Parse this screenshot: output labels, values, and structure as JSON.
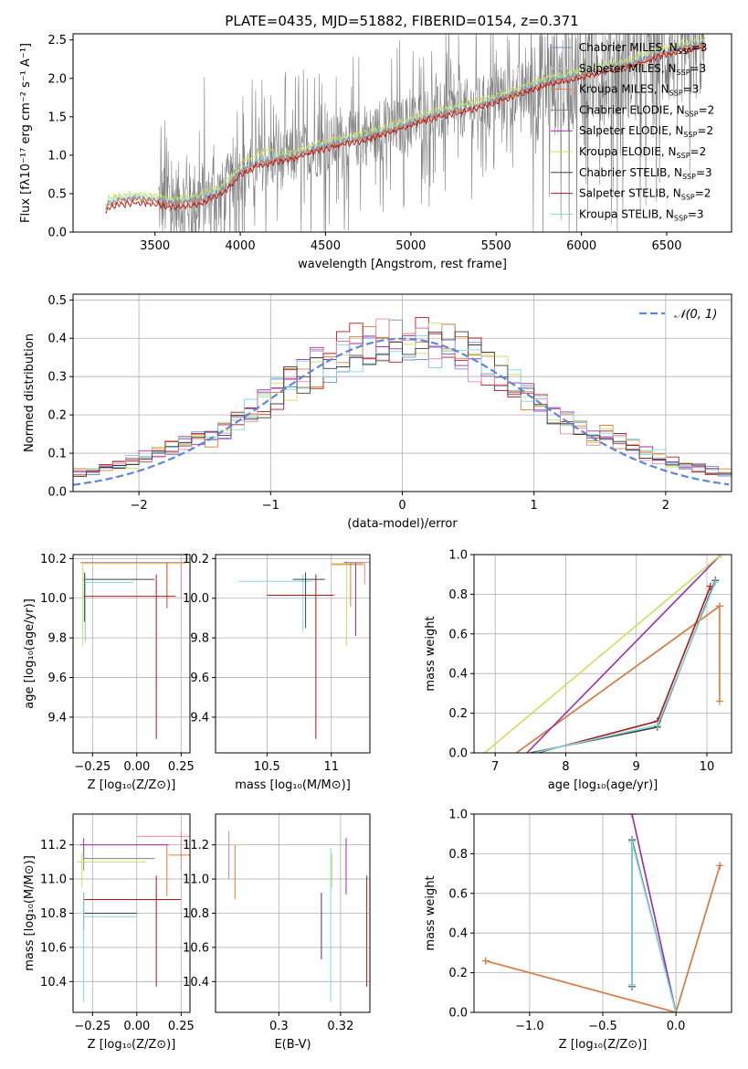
{
  "figure": {
    "title": "PLATE=0435, MJD=51882, FIBERID=0154, z=0.371"
  },
  "colors": {
    "chabrier_miles": "#6a8fd8",
    "salpeter_miles": "#c0c0c0",
    "kroupa_miles": "#e07b39",
    "chabrier_elodie": "#808080",
    "salpeter_elodie": "#9a2fb0",
    "kroupa_elodie": "#c8e060",
    "chabrier_stelib": "#404040",
    "salpeter_stelib": "#b01818",
    "kroupa_stelib": "#80d8e0",
    "pink": "#e88aa8",
    "grid": "#b0b0b0",
    "data": "#808080"
  },
  "chart_data": [
    {
      "id": "spectrum",
      "type": "line",
      "title": "PLATE=0435, MJD=51882, FIBERID=0154, z=0.371",
      "xlabel": "wavelength [Angstrom, rest frame]",
      "ylabel": "Flux [fλ10⁻¹⁷ erg cm⁻² s⁻¹ A⁻¹]",
      "xlim": [
        3020,
        6880
      ],
      "ylim": [
        0,
        2.58
      ],
      "xticks": [
        3500,
        4000,
        4500,
        5000,
        5500,
        6000,
        6500
      ],
      "yticks": [
        0.0,
        0.5,
        1.0,
        1.5,
        2.0,
        2.5
      ],
      "grid": false,
      "legend_position": "top-right",
      "legend": [
        {
          "label": "Chabrier MILES, N",
          "sub": "SSP",
          "suffix": "=3"
        },
        {
          "label": "Salpeter MILES, N",
          "sub": "SSP",
          "suffix": "=3"
        },
        {
          "label": "Kroupa MILES, N",
          "sub": "SSP",
          "suffix": "=3"
        },
        {
          "label": "Chabrier ELODIE, N",
          "sub": "SSP",
          "suffix": "=2"
        },
        {
          "label": "Salpeter ELODIE, N",
          "sub": "SSP",
          "suffix": "=2"
        },
        {
          "label": "Kroupa ELODIE, N",
          "sub": "SSP",
          "suffix": "=2"
        },
        {
          "label": "Chabrier STELIB, N",
          "sub": "SSP",
          "suffix": "=3"
        },
        {
          "label": "Salpeter STELIB, N",
          "sub": "SSP",
          "suffix": "=2"
        },
        {
          "label": "Kroupa STELIB, N",
          "sub": "SSP",
          "suffix": "=3"
        }
      ],
      "model_continuum": [
        [
          3210,
          0.3
        ],
        [
          3230,
          0.38
        ],
        [
          3300,
          0.42
        ],
        [
          3400,
          0.44
        ],
        [
          3500,
          0.42
        ],
        [
          3600,
          0.38
        ],
        [
          3700,
          0.4
        ],
        [
          3800,
          0.45
        ],
        [
          3900,
          0.55
        ],
        [
          4000,
          0.78
        ],
        [
          4100,
          0.9
        ],
        [
          4200,
          0.95
        ],
        [
          4300,
          0.98
        ],
        [
          4400,
          1.06
        ],
        [
          4500,
          1.12
        ],
        [
          4600,
          1.18
        ],
        [
          4700,
          1.22
        ],
        [
          4800,
          1.28
        ],
        [
          4900,
          1.35
        ],
        [
          5000,
          1.42
        ],
        [
          5100,
          1.5
        ],
        [
          5200,
          1.55
        ],
        [
          5300,
          1.6
        ],
        [
          5400,
          1.65
        ],
        [
          5500,
          1.72
        ],
        [
          5600,
          1.8
        ],
        [
          5700,
          1.88
        ],
        [
          5800,
          1.95
        ],
        [
          5900,
          2.0
        ],
        [
          6000,
          2.05
        ],
        [
          6100,
          2.1
        ],
        [
          6200,
          2.15
        ],
        [
          6300,
          2.2
        ],
        [
          6400,
          2.28
        ],
        [
          6500,
          2.35
        ],
        [
          6600,
          2.4
        ],
        [
          6720,
          2.45
        ]
      ],
      "data_range": [
        3520,
        6720
      ]
    },
    {
      "id": "residuals",
      "type": "line",
      "xlabel": "(data-model)/error",
      "ylabel": "Normed distribution",
      "xlim": [
        -2.5,
        2.5
      ],
      "ylim": [
        0,
        0.515
      ],
      "xticks": [
        -2,
        -1,
        0,
        1,
        2
      ],
      "xtick_labels": [
        "−2",
        "−1",
        "0",
        "1",
        "2"
      ],
      "yticks": [
        0.0,
        0.1,
        0.2,
        0.3,
        0.4,
        0.5
      ],
      "grid": true,
      "legend_position": "top-right",
      "legend": [
        {
          "label": "𝒩(0, 1)",
          "style": "dashed"
        }
      ],
      "series": [
        {
          "name": "𝒩(0, 1)",
          "function": "normal",
          "mean": 0,
          "sigma": 1
        }
      ]
    },
    {
      "id": "age_vs_Z",
      "type": "scatter",
      "xlabel": "Z [log₁₀(Z/Z⊙)]",
      "ylabel": "age  [log₁₀(age/yr)]",
      "xlim": [
        -0.36,
        0.3
      ],
      "ylim": [
        9.22,
        10.22
      ],
      "xticks": [
        -0.25,
        0.0,
        0.25
      ],
      "xtick_labels": [
        "−0.25",
        "0.00",
        "0.25"
      ],
      "yticks": [
        9.4,
        9.6,
        9.8,
        10.0,
        10.2
      ],
      "grid": true
    },
    {
      "id": "age_vs_mass",
      "type": "scatter",
      "xlabel": "mass [log₁₀(M/M⊙)]",
      "xlim": [
        10.1,
        11.3
      ],
      "ylim": [
        9.22,
        10.22
      ],
      "xticks": [
        10.5,
        11.0
      ],
      "yticks": [
        9.4,
        9.6,
        9.8,
        10.0,
        10.2
      ],
      "grid": true
    },
    {
      "id": "mw_vs_age",
      "type": "line",
      "xlabel": "age  [log₁₀(age/yr)]",
      "ylabel": "mass weight",
      "xlim": [
        6.7,
        10.35
      ],
      "ylim": [
        0,
        1
      ],
      "xticks": [
        7,
        8,
        9,
        10
      ],
      "yticks": [
        0.0,
        0.2,
        0.4,
        0.6,
        0.8,
        1.0
      ],
      "grid": true,
      "series": [
        {
          "name": "Chabrier MILES",
          "color": "#6a8fd8",
          "points": [
            [
              7.3,
              0
            ],
            [
              10.18,
              0.74
            ]
          ]
        },
        {
          "name": "Kroupa MILES",
          "color": "#e07b39",
          "points": [
            [
              7.3,
              0
            ],
            [
              10.18,
              0.74
            ],
            [
              10.18,
              0.26
            ]
          ]
        },
        {
          "name": "Salpeter ELODIE",
          "color": "#9a2fb0",
          "points": [
            [
              7.45,
              0
            ],
            [
              10.2,
              1.0
            ]
          ]
        },
        {
          "name": "Kroupa ELODIE",
          "color": "#c8e060",
          "points": [
            [
              6.85,
              0
            ],
            [
              10.2,
              1.0
            ]
          ]
        },
        {
          "name": "Chabrier STELIB",
          "color": "#404040",
          "points": [
            [
              7.5,
              0
            ],
            [
              9.3,
              0.13
            ],
            [
              10.12,
              0.87
            ]
          ]
        },
        {
          "name": "Salpeter STELIB",
          "color": "#b01818",
          "points": [
            [
              7.6,
              0
            ],
            [
              9.3,
              0.16
            ],
            [
              10.05,
              0.84
            ]
          ]
        },
        {
          "name": "Kroupa STELIB",
          "color": "#80d8e0",
          "points": [
            [
              7.55,
              0
            ],
            [
              9.3,
              0.14
            ],
            [
              10.12,
              0.86
            ]
          ]
        }
      ]
    },
    {
      "id": "mass_vs_Z",
      "type": "scatter",
      "xlabel": "Z [log₁₀(Z/Z⊙)]",
      "ylabel": "mass [log₁₀(M/M⊙)]",
      "xlim": [
        -0.36,
        0.3
      ],
      "ylim": [
        10.22,
        11.38
      ],
      "xticks": [
        -0.25,
        0.0,
        0.25
      ],
      "xtick_labels": [
        "−0.25",
        "0.00",
        "0.25"
      ],
      "yticks": [
        10.4,
        10.6,
        10.8,
        11.0,
        11.2
      ],
      "grid": true
    },
    {
      "id": "mass_vs_ebv",
      "type": "scatter",
      "xlabel": "E(B-V)",
      "xlim": [
        0.2795,
        0.3295
      ],
      "ylim": [
        10.22,
        11.38
      ],
      "xticks": [
        0.3,
        0.32
      ],
      "yticks": [
        10.4,
        10.6,
        10.8,
        11.0,
        11.2
      ],
      "grid": true
    },
    {
      "id": "mw_vs_Z",
      "type": "line",
      "xlabel": "Z [log₁₀(Z/Z⊙)]",
      "ylabel": "mass weight",
      "xlim": [
        -1.38,
        0.38
      ],
      "ylim": [
        0,
        1
      ],
      "xticks": [
        -1.0,
        -0.5,
        0.0
      ],
      "xtick_labels": [
        "−1.0",
        "−0.5",
        "0.0"
      ],
      "yticks": [
        0.0,
        0.2,
        0.4,
        0.6,
        0.8,
        1.0
      ],
      "grid": true,
      "series": [
        {
          "name": "Chabrier MILES",
          "color": "#6a8fd8",
          "points": [
            [
              -1.3,
              0.26
            ],
            [
              0,
              0
            ],
            [
              0.3,
              0.74
            ]
          ]
        },
        {
          "name": "Kroupa MILES",
          "color": "#e07b39",
          "points": [
            [
              -1.3,
              0.26
            ],
            [
              0,
              0
            ],
            [
              0.3,
              0.74
            ]
          ]
        },
        {
          "name": "Kroupa ELODIE",
          "color": "#c8e060",
          "points": [
            [
              -0.3,
              1.0
            ],
            [
              0,
              0
            ]
          ]
        },
        {
          "name": "Salpeter ELODIE",
          "color": "#9a2fb0",
          "points": [
            [
              -0.3,
              1.0
            ],
            [
              0,
              0
            ]
          ]
        },
        {
          "name": "Chabrier STELIB",
          "color": "#404040",
          "points": [
            [
              -0.3,
              0.13
            ],
            [
              -0.3,
              0.87
            ],
            [
              0,
              0
            ]
          ]
        },
        {
          "name": "Kroupa STELIB",
          "color": "#80d8e0",
          "points": [
            [
              -0.3,
              0.14
            ],
            [
              -0.3,
              0.86
            ],
            [
              0,
              0
            ]
          ]
        }
      ]
    }
  ]
}
